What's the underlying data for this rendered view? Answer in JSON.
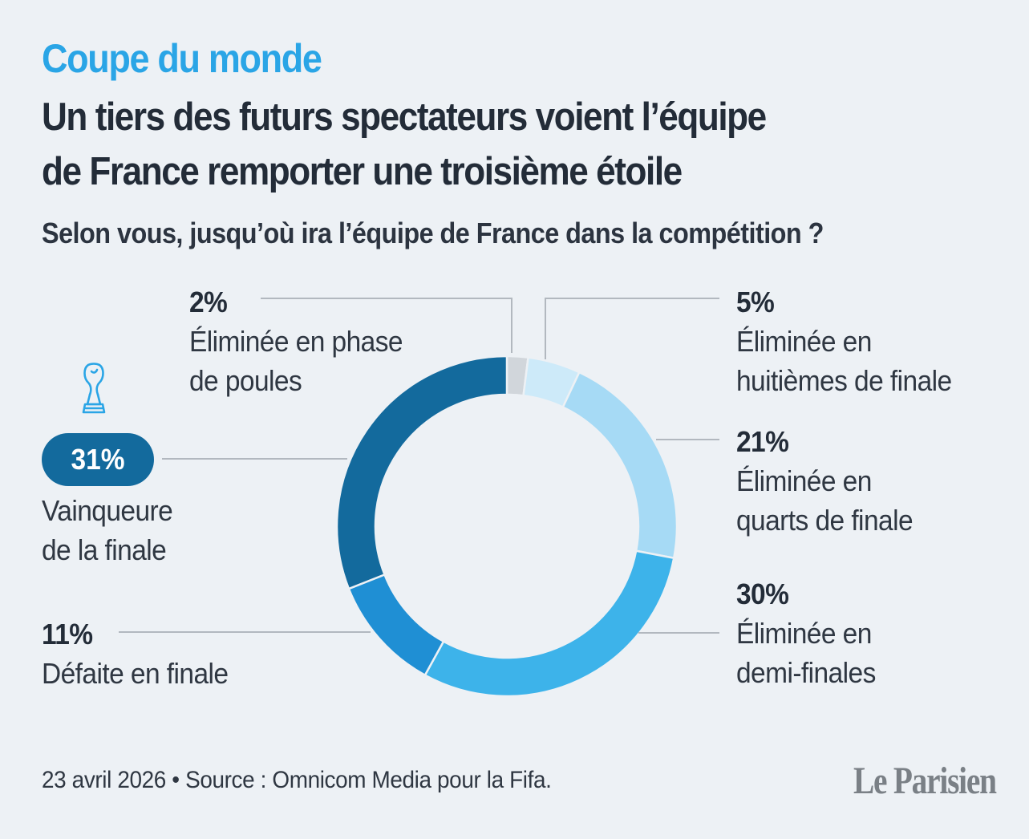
{
  "header": {
    "kicker": "Coupe du monde",
    "title_line1": "Un tiers des futurs spectateurs voient l’équipe",
    "title_line2": "de France remporter une troisième étoile",
    "question": "Selon vous, jusqu’où ira l’équipe de France dans la compétition ?"
  },
  "chart_data": {
    "type": "pie",
    "donut": true,
    "slices": [
      {
        "label": "Éliminée en phase de poules",
        "value": 2,
        "value_label": "2%",
        "color": "#d1d6db"
      },
      {
        "label": "Éliminée en huitièmes de finale",
        "value": 5,
        "value_label": "5%",
        "color": "#cdeaf9"
      },
      {
        "label": "Éliminée en quarts de finale",
        "value": 21,
        "value_label": "21%",
        "color": "#a6daf5"
      },
      {
        "label": "Éliminée en demi-finales",
        "value": 30,
        "value_label": "30%",
        "color": "#3db3ea"
      },
      {
        "label": "Défaite en finale",
        "value": 11,
        "value_label": "11%",
        "color": "#1f8fd4"
      },
      {
        "label": "Vainqueure de la finale",
        "value": 31,
        "value_label": "31%",
        "color": "#136a9d"
      }
    ]
  },
  "labels": {
    "poules": {
      "pct": "2%",
      "line1": "Éliminée en phase",
      "line2": "de poules"
    },
    "huitiemes": {
      "pct": "5%",
      "line1": "Éliminée en",
      "line2": "huitièmes de finale"
    },
    "quarts": {
      "pct": "21%",
      "line1": "Éliminée en",
      "line2": "quarts de finale"
    },
    "demi": {
      "pct": "30%",
      "line1": "Éliminée en",
      "line2": "demi-finales"
    },
    "defaite": {
      "pct": "11%",
      "line1": "Défaite en finale"
    },
    "vainqueure": {
      "pct": "31%",
      "line1": "Vainqueure",
      "line2": "de la finale"
    }
  },
  "icons": {
    "trophy": "trophy-icon"
  },
  "footer": {
    "source": "23 avril 2026 • Source : Omnicom Media pour la Fifa.",
    "logo": "Le Parisien"
  }
}
